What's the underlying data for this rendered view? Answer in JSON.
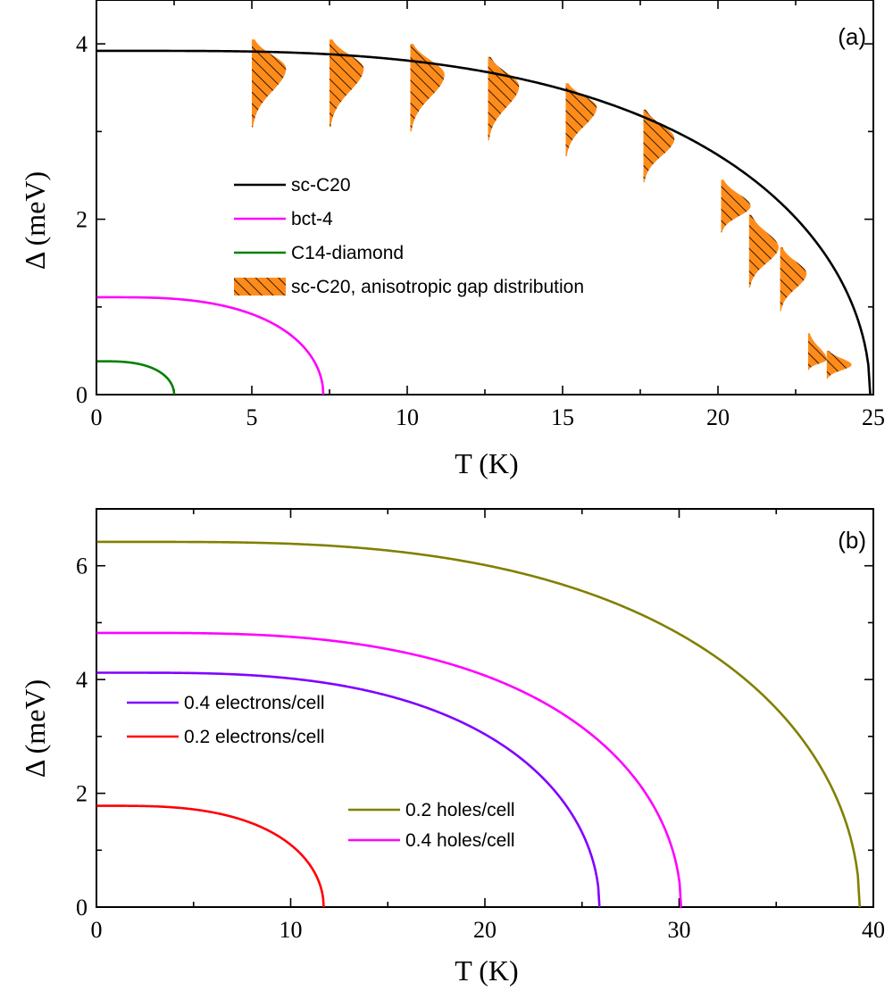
{
  "chart_data": [
    {
      "type": "line",
      "panel_label": "(a)",
      "xlabel": "T (K)",
      "ylabel": "Δ (meV)",
      "xlim": [
        0,
        25
      ],
      "ylim": [
        0,
        4.5
      ],
      "xticks": [
        0,
        5,
        10,
        15,
        20,
        25
      ],
      "yticks": [
        0,
        2,
        4
      ],
      "legend_position": "center-left",
      "series": [
        {
          "name": "sc-C20",
          "color": "#000000",
          "delta0": 3.92,
          "tc": 24.9
        },
        {
          "name": "bct-4",
          "color": "#ff00ff",
          "delta0": 1.11,
          "tc": 7.3
        },
        {
          "name": "C14-diamond",
          "color": "#008000",
          "delta0": 0.38,
          "tc": 2.5
        }
      ],
      "distribution": {
        "name": "sc-C20, anisotropic gap distribution",
        "color": "#ff8c1a",
        "points": [
          {
            "t": 5.0,
            "min": 3.05,
            "max": 4.05,
            "peak": 3.72,
            "width": 1.1
          },
          {
            "t": 7.5,
            "min": 3.05,
            "max": 4.05,
            "peak": 3.72,
            "width": 1.1
          },
          {
            "t": 10.1,
            "min": 3.0,
            "max": 4.0,
            "peak": 3.65,
            "width": 1.1
          },
          {
            "t": 12.6,
            "min": 2.9,
            "max": 3.85,
            "peak": 3.52,
            "width": 1.0
          },
          {
            "t": 15.1,
            "min": 2.72,
            "max": 3.55,
            "peak": 3.28,
            "width": 1.0
          },
          {
            "t": 17.6,
            "min": 2.42,
            "max": 3.25,
            "peak": 2.92,
            "width": 1.0
          },
          {
            "t": 20.1,
            "min": 1.85,
            "max": 2.45,
            "peak": 2.15,
            "width": 0.95
          },
          {
            "t": 21.0,
            "min": 1.22,
            "max": 2.05,
            "peak": 1.68,
            "width": 0.95
          },
          {
            "t": 22.0,
            "min": 0.95,
            "max": 1.68,
            "peak": 1.38,
            "width": 0.85
          },
          {
            "t": 22.9,
            "min": 0.28,
            "max": 0.7,
            "peak": 0.4,
            "width": 0.6
          },
          {
            "t": 23.5,
            "min": 0.18,
            "max": 0.5,
            "peak": 0.34,
            "width": 0.8
          }
        ]
      }
    },
    {
      "type": "line",
      "panel_label": "(b)",
      "xlabel": "T (K)",
      "ylabel": "Δ (meV)",
      "xlim": [
        0,
        40
      ],
      "ylim": [
        0,
        7
      ],
      "xticks": [
        0,
        10,
        20,
        30,
        40
      ],
      "yticks": [
        0,
        2,
        4,
        6
      ],
      "legend_position": "left and center",
      "series": [
        {
          "name": "0.4 electrons/cell",
          "color": "#8000ff",
          "delta0": 4.12,
          "tc": 25.9
        },
        {
          "name": "0.2 electrons/cell",
          "color": "#ff0000",
          "delta0": 1.78,
          "tc": 11.7
        },
        {
          "name": "0.2 holes/cell",
          "color": "#808000",
          "delta0": 6.42,
          "tc": 39.3
        },
        {
          "name": "0.4 holes/cell",
          "color": "#ff00ff",
          "delta0": 4.82,
          "tc": 30.1
        }
      ]
    }
  ]
}
